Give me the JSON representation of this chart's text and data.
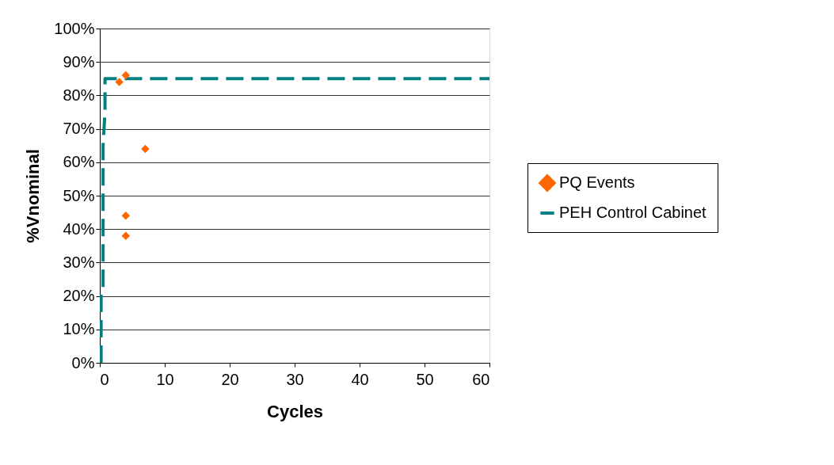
{
  "chart_data": {
    "type": "scatter",
    "xlabel": "Cycles",
    "ylabel": "%Vnominal",
    "series": [
      {
        "name": "PQ Events",
        "color": "#ff6600",
        "marker": "diamond",
        "x": [
          3,
          4,
          7,
          4,
          4
        ],
        "values": [
          84,
          86,
          64,
          44,
          38
        ]
      },
      {
        "name": "PEH Control Cabinet",
        "type": "line",
        "color": "#008080",
        "line_style": "dashed",
        "x": [
          0.2,
          0.2,
          0.5,
          0.5,
          0.8,
          0.8,
          60
        ],
        "values": [
          0,
          20,
          22,
          65,
          75,
          85,
          85
        ]
      }
    ],
    "xlim": [
      0,
      60
    ],
    "xticks": [
      0,
      10,
      20,
      30,
      40,
      50,
      60
    ],
    "ylim": [
      0,
      100
    ],
    "yticks": [
      {
        "value": 0,
        "label": "0%"
      },
      {
        "value": 10,
        "label": "10%"
      },
      {
        "value": 20,
        "label": "20%"
      },
      {
        "value": 30,
        "label": "30%"
      },
      {
        "value": 40,
        "label": "40%"
      },
      {
        "value": 50,
        "label": "50%"
      },
      {
        "value": 60,
        "label": "60%"
      },
      {
        "value": 70,
        "label": "70%"
      },
      {
        "value": 80,
        "label": "80%"
      },
      {
        "value": 90,
        "label": "90%"
      },
      {
        "value": 100,
        "label": "100%"
      }
    ],
    "grid": "y",
    "legend": "right"
  }
}
